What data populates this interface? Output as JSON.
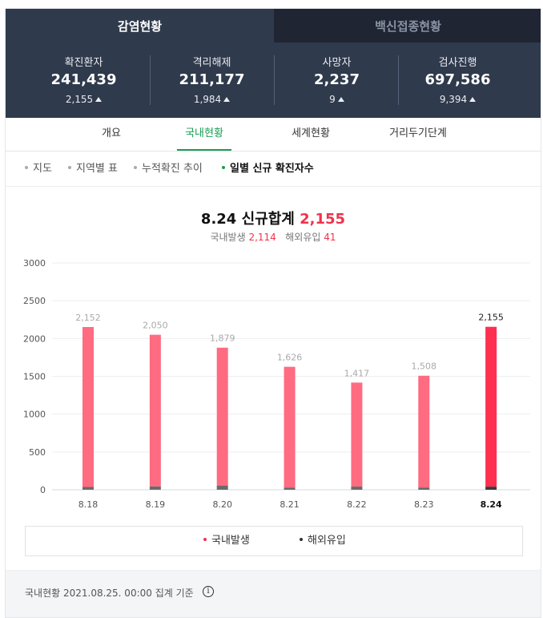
{
  "top_tabs": [
    {
      "label": "감염현황",
      "active": true
    },
    {
      "label": "백신접종현황",
      "active": false
    }
  ],
  "stats": [
    {
      "label": "확진환자",
      "value": "241,439",
      "change": "2,155"
    },
    {
      "label": "격리해제",
      "value": "211,177",
      "change": "1,984"
    },
    {
      "label": "사망자",
      "value": "2,237",
      "change": "9"
    },
    {
      "label": "검사진행",
      "value": "697,586",
      "change": "9,394"
    }
  ],
  "sub_tabs": [
    {
      "label": "개요",
      "active": false
    },
    {
      "label": "국내현황",
      "active": true
    },
    {
      "label": "세계현황",
      "active": false
    },
    {
      "label": "거리두기단계",
      "active": false
    }
  ],
  "chips": [
    {
      "label": "지도",
      "active": false
    },
    {
      "label": "지역별 표",
      "active": false
    },
    {
      "label": "누적확진 추이",
      "active": false
    },
    {
      "label": "일별 신규 확진자수",
      "active": true
    }
  ],
  "summary": {
    "title_prefix": "8.24 신규합계",
    "total": "2,155",
    "domestic_label": "국내발생",
    "domestic_value": "2,114",
    "overseas_label": "해외유입",
    "overseas_value": "41"
  },
  "chart_data": {
    "type": "bar",
    "categories": [
      "8.18",
      "8.19",
      "8.20",
      "8.21",
      "8.22",
      "8.23",
      "8.24"
    ],
    "series": [
      {
        "name": "국내발생",
        "values": [
          2115,
          2006,
          1823,
          1597,
          1375,
          1478,
          2114
        ]
      },
      {
        "name": "해외유입",
        "values": [
          37,
          44,
          56,
          29,
          42,
          30,
          41
        ]
      }
    ],
    "totals": [
      2152,
      2050,
      1879,
      1626,
      1417,
      1508,
      2155
    ],
    "total_labels": [
      "2,152",
      "2,050",
      "1,879",
      "1,626",
      "1,417",
      "1,508",
      "2,155"
    ],
    "yticks": [
      0,
      500,
      1000,
      1500,
      2000,
      2500,
      3000
    ],
    "ylim": [
      0,
      3000
    ],
    "highlight_index": 6,
    "grid": true,
    "colors": {
      "domestic": "#ff6b80",
      "domestic_highlight": "#ff2f4f",
      "overseas": "#6b6b6b",
      "overseas_highlight": "#3a3a3a"
    }
  },
  "legend": [
    {
      "label": "국내발생",
      "color": "#f0324c"
    },
    {
      "label": "해외유입",
      "color": "#333333"
    }
  ],
  "footer": {
    "note": "국내현황 2021.08.25. 00:00 집계 기준",
    "info_glyph": "i"
  }
}
